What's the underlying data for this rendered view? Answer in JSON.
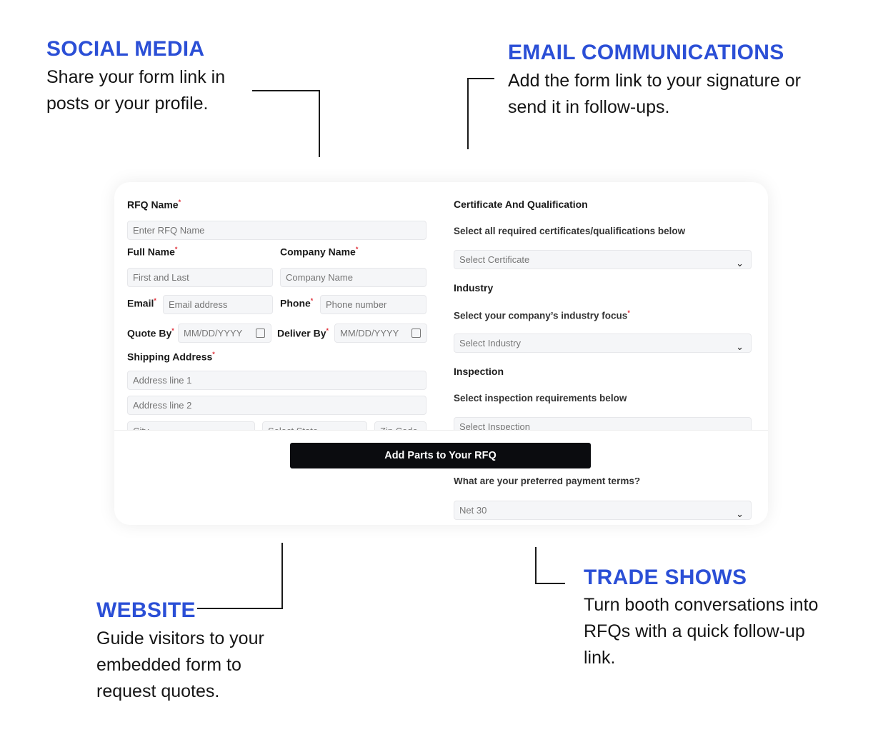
{
  "callouts": {
    "social": {
      "title": "SOCIAL MEDIA",
      "text": "Share your form link in posts or your profile."
    },
    "email": {
      "title": "EMAIL COMMUNICATIONS",
      "text": "Add the form link to your signature or send it in follow-ups."
    },
    "website": {
      "title": "WEBSITE",
      "text": "Guide visitors to your embedded form to request quotes."
    },
    "trade": {
      "title": "TRADE SHOWS",
      "text": "Turn booth conversations into RFQs with a quick follow-up link."
    }
  },
  "form": {
    "rfq_name": {
      "label": "RFQ Name",
      "placeholder": "Enter RFQ Name"
    },
    "full_name": {
      "label": "Full Name",
      "placeholder": "First and Last"
    },
    "company": {
      "label": "Company Name",
      "placeholder": "Company Name"
    },
    "email": {
      "label": "Email",
      "placeholder": "Email address"
    },
    "phone": {
      "label": "Phone",
      "placeholder": "Phone number"
    },
    "quote_by": {
      "label": "Quote By",
      "placeholder": "MM/DD/YYYY"
    },
    "deliver_by": {
      "label": "Deliver By",
      "placeholder": "MM/DD/YYYY"
    },
    "shipping": {
      "label": "Shipping Address",
      "line1": "Address line 1",
      "line2": "Address line 2",
      "city": "City",
      "state": "Select State",
      "zip": "Zip Code"
    },
    "certificate": {
      "title": "Certificate And Qualification",
      "sub": "Select all required certificates/qualifications below",
      "value": "Select Certificate"
    },
    "industry": {
      "title": "Industry",
      "sub": "Select your company’s industry focus",
      "value": "Select Industry"
    },
    "inspection": {
      "title": "Inspection",
      "sub": "Select inspection requirements below",
      "value": "Select Inspection"
    },
    "payment": {
      "sub": "What are your preferred payment terms?",
      "value": "Net 30"
    },
    "submit_label": "Add Parts to Your RFQ"
  },
  "colors": {
    "accent": "#2B4FD6",
    "button": "#0b0c0f",
    "required": "#e0303a"
  }
}
